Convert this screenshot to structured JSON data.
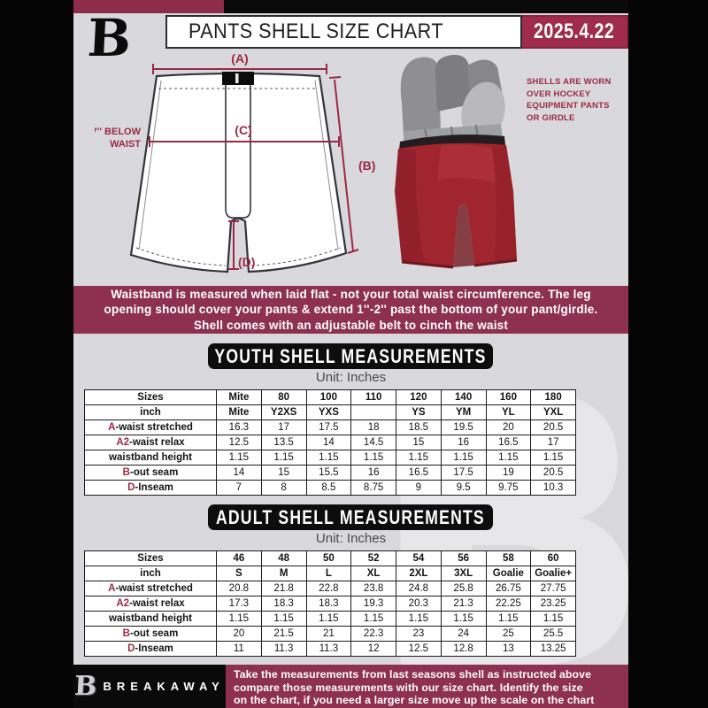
{
  "header": {
    "title": "PANTS SHELL SIZE CHART",
    "date": "2025.4.22",
    "logo": "B"
  },
  "diagram": {
    "labels": {
      "a": "(A)",
      "b": "(B)",
      "c": "(C)",
      "d": "(D)"
    },
    "waist_note": [
      "7'' BELOW",
      "WAIST"
    ],
    "photo_caption": [
      "SHELLS ARE WORN",
      "OVER HOCKEY",
      "EQUIPMENT PANTS",
      "OR GIRDLE"
    ]
  },
  "notice_banner": {
    "lines": [
      "Waistband is measured when laid flat - not your total waist circumference. The leg",
      "opening should cover your pants & extend 1''-2'' past the bottom of your pant/girdle.",
      "Shell comes with an adjustable belt to cinch the waist"
    ]
  },
  "youth_section": {
    "title": "YOUTH SHELL MEASUREMENTS",
    "unit": "Unit: Inches",
    "table": {
      "rows": [
        {
          "header": true,
          "prefix": "",
          "label": "Sizes",
          "cells": [
            "Mite",
            "80",
            "100",
            "110",
            "120",
            "140",
            "160",
            "180"
          ]
        },
        {
          "header": true,
          "prefix": "",
          "label": "inch",
          "cells": [
            "Mite",
            "Y2XS",
            "YXS",
            "",
            "YS",
            "YM",
            "YL",
            "YXL"
          ]
        },
        {
          "prefix": "A",
          "label": "-waist stretched",
          "cells": [
            "16.3",
            "17",
            "17.5",
            "18",
            "18.5",
            "19.5",
            "20",
            "20.5"
          ]
        },
        {
          "prefix": "A2",
          "label": "-waist relax",
          "cells": [
            "12.5",
            "13.5",
            "14",
            "14.5",
            "15",
            "16",
            "16.5",
            "17"
          ]
        },
        {
          "prefix": "",
          "label": "waistband height",
          "cells": [
            "1.15",
            "1.15",
            "1.15",
            "1.15",
            "1.15",
            "1.15",
            "1.15",
            "1.15"
          ]
        },
        {
          "prefix": "B",
          "label": "-out seam",
          "cells": [
            "14",
            "15",
            "15.5",
            "16",
            "16.5",
            "17.5",
            "19",
            "20.5"
          ]
        },
        {
          "prefix": "D",
          "label": "-Inseam",
          "cells": [
            "7",
            "8",
            "8.5",
            "8.75",
            "9",
            "9.5",
            "9.75",
            "10.3"
          ]
        }
      ]
    }
  },
  "adult_section": {
    "title": "ADULT SHELL MEASUREMENTS",
    "unit": "Unit: Inches",
    "table": {
      "rows": [
        {
          "header": true,
          "prefix": "",
          "label": "Sizes",
          "cells": [
            "46",
            "48",
            "50",
            "52",
            "54",
            "56",
            "58",
            "60"
          ]
        },
        {
          "header": true,
          "prefix": "",
          "label": "inch",
          "cells": [
            "S",
            "M",
            "L",
            "XL",
            "2XL",
            "3XL",
            "Goalie",
            "Goalie+"
          ]
        },
        {
          "prefix": "A",
          "label": "-waist stretched",
          "cells": [
            "20.8",
            "21.8",
            "22.8",
            "23.8",
            "24.8",
            "25.8",
            "26.75",
            "27.75"
          ]
        },
        {
          "prefix": "A2",
          "label": "-waist relax",
          "cells": [
            "17.3",
            "18.3",
            "18.3",
            "19.3",
            "20.3",
            "21.3",
            "22.25",
            "23.25"
          ]
        },
        {
          "prefix": "",
          "label": "waistband height",
          "cells": [
            "1.15",
            "1.15",
            "1.15",
            "1.15",
            "1.15",
            "1.15",
            "1.15",
            "1.15"
          ]
        },
        {
          "prefix": "B",
          "label": "-out seam",
          "cells": [
            "20",
            "21.5",
            "21",
            "22.3",
            "23",
            "24",
            "25",
            "25.5"
          ]
        },
        {
          "prefix": "D",
          "label": "-Inseam",
          "cells": [
            "11",
            "11.3",
            "11.3",
            "12",
            "12.5",
            "12.8",
            "13",
            "13.25"
          ]
        }
      ]
    }
  },
  "footer": {
    "logo": "B",
    "brand": "BREAKAWAY",
    "lines": [
      "Take the measurements from last seasons shell as instructed above",
      "compare those measurements  with our size chart. Identify the size",
      "on the chart, if you need a larger size move up the scale on the chart"
    ]
  },
  "watermark": "B",
  "colors": {
    "maroon": "#8e3150",
    "accent": "#9b2944",
    "date_badge": "#9e2c4a",
    "page_black": "#0a0a0a",
    "background_gray": "#d9d9dd",
    "shell_red": "#a1252f"
  }
}
